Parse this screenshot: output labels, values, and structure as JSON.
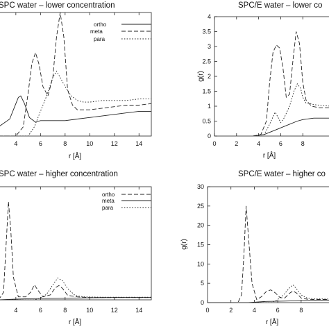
{
  "chart_data": [
    {
      "type": "line",
      "title": "SPC water – lower concentration",
      "xlabel": "r [Å]",
      "ylabel": "",
      "xlim": [
        2.6,
        15
      ],
      "ylim": [
        0,
        4
      ],
      "xticks": [
        "4",
        "6",
        "8",
        "10",
        "12",
        "14"
      ],
      "yticks": [],
      "legend": [
        "ortho",
        "meta",
        "para"
      ],
      "series": [
        {
          "name": "ortho",
          "dash": "solid",
          "x": [
            2.6,
            3.5,
            3.9,
            4.2,
            4.4,
            4.7,
            5.1,
            5.6,
            6.0,
            7.0,
            8.0,
            9.0,
            10,
            11,
            12,
            13,
            14,
            15
          ],
          "values": [
            0.3,
            0.55,
            0.95,
            1.25,
            1.3,
            1.05,
            0.6,
            0.45,
            0.5,
            0.5,
            0.5,
            0.55,
            0.6,
            0.65,
            0.7,
            0.75,
            0.8,
            0.8
          ]
        },
        {
          "name": "meta",
          "dash": "dashed",
          "x": [
            2.6,
            4.0,
            4.6,
            5.0,
            5.3,
            5.6,
            5.9,
            6.2,
            6.6,
            7.0,
            7.3,
            7.6,
            7.9,
            8.2,
            8.6,
            9.0,
            10,
            11,
            12,
            13,
            14,
            15
          ],
          "values": [
            0,
            0,
            0.3,
            1.4,
            2.35,
            2.7,
            2.3,
            1.6,
            1.3,
            1.9,
            3.2,
            4.0,
            3.2,
            1.5,
            1.0,
            0.85,
            0.85,
            0.9,
            0.95,
            1.0,
            1.0,
            1.05
          ]
        },
        {
          "name": "para",
          "dash": "dotted",
          "x": [
            2.6,
            5.0,
            5.5,
            6.0,
            6.5,
            7.0,
            7.3,
            7.6,
            8.0,
            8.5,
            9.0,
            9.5,
            10,
            11,
            12,
            13,
            14,
            15
          ],
          "values": [
            0,
            0,
            0.3,
            0.8,
            1.3,
            1.9,
            2.1,
            1.9,
            1.6,
            1.3,
            1.15,
            1.1,
            1.1,
            1.15,
            1.15,
            1.15,
            1.2,
            1.2
          ]
        }
      ]
    },
    {
      "type": "line",
      "title": "SPC/E water – lower co",
      "xlabel": "r [Å]",
      "ylabel": "g(r)",
      "xlim": [
        0,
        10.5
      ],
      "ylim": [
        0,
        4
      ],
      "xticks": [
        "0",
        "2",
        "4",
        "6",
        "8"
      ],
      "yticks": [
        "0",
        "0.5",
        "1",
        "1.5",
        "2",
        "2.5",
        "3",
        "3.5",
        "4"
      ],
      "series": [
        {
          "name": "ortho",
          "dash": "solid",
          "x": [
            3.5,
            4.5,
            5.5,
            6.5,
            7.5,
            8.0,
            9.0,
            10.5
          ],
          "values": [
            0,
            0.05,
            0.2,
            0.35,
            0.5,
            0.55,
            0.6,
            0.6
          ]
        },
        {
          "name": "meta",
          "dash": "dashed",
          "x": [
            3.5,
            4.2,
            4.7,
            5.0,
            5.3,
            5.6,
            5.9,
            6.2,
            6.5,
            6.8,
            7.1,
            7.4,
            7.7,
            8.0,
            8.3,
            8.8,
            9.5,
            10.5
          ],
          "values": [
            0,
            0.05,
            0.5,
            1.8,
            2.8,
            3.05,
            2.95,
            2.3,
            1.3,
            1.4,
            2.5,
            3.5,
            3.1,
            1.8,
            1.2,
            1.0,
            0.95,
            0.95
          ]
        },
        {
          "name": "para",
          "dash": "dotted",
          "x": [
            3.5,
            4.5,
            5.0,
            5.5,
            5.8,
            6.0,
            6.3,
            6.8,
            7.2,
            7.5,
            7.8,
            8.0,
            8.3,
            8.6,
            9.0,
            10.5
          ],
          "values": [
            0,
            0.05,
            0.4,
            0.8,
            0.6,
            0.45,
            0.6,
            1.0,
            1.5,
            1.75,
            1.6,
            1.3,
            1.1,
            1.1,
            1.05,
            1.0
          ]
        }
      ]
    },
    {
      "type": "line",
      "title": "SPC water – higher concentration",
      "xlabel": "r [Å]",
      "ylabel": "",
      "xlim": [
        2.6,
        15
      ],
      "ylim": [
        0,
        30
      ],
      "xticks": [
        "4",
        "6",
        "8",
        "10",
        "12",
        "14"
      ],
      "yticks": [],
      "legend": [
        "ortho",
        "meta",
        "para"
      ],
      "series": [
        {
          "name": "ortho",
          "dash": "dashed",
          "x": [
            2.6,
            3.0,
            3.2,
            3.4,
            3.6,
            3.8,
            4.2,
            4.8,
            5.2,
            5.5,
            5.8,
            6.2,
            6.8,
            7.2,
            7.5,
            7.8,
            8.2,
            9,
            10,
            12,
            15
          ],
          "values": [
            0,
            2,
            14,
            26,
            18,
            6,
            0.8,
            0.8,
            2,
            4,
            2.5,
            0.8,
            1.3,
            3.2,
            3.8,
            3.0,
            1.2,
            0.8,
            0.6,
            0.6,
            0.6
          ]
        },
        {
          "name": "meta",
          "dash": "solid",
          "x": [
            2.6,
            4.0,
            5.0,
            6.0,
            7.0,
            8.0,
            9.0,
            10,
            12,
            15
          ],
          "values": [
            0,
            0.2,
            0.3,
            0.35,
            0.4,
            0.45,
            0.5,
            0.55,
            0.6,
            0.6
          ]
        },
        {
          "name": "para",
          "dash": "dotted",
          "x": [
            2.6,
            5.5,
            6.0,
            6.5,
            7.0,
            7.4,
            7.8,
            8.2,
            8.8,
            9.5,
            11,
            13,
            15
          ],
          "values": [
            0,
            0,
            0.5,
            1.5,
            4.0,
            5.8,
            5.0,
            3.0,
            1.2,
            0.8,
            0.7,
            0.7,
            0.7
          ]
        }
      ]
    },
    {
      "type": "line",
      "title": "SPC/E water – higher co",
      "xlabel": "r [Å]",
      "ylabel": "g(r)",
      "xlim": [
        0,
        10.5
      ],
      "ylim": [
        0,
        30
      ],
      "xticks": [
        "0",
        "2",
        "4",
        "6",
        "8"
      ],
      "yticks": [
        "0",
        "5",
        "10",
        "15",
        "20",
        "25",
        "30"
      ],
      "series": [
        {
          "name": "ortho",
          "dash": "dashed",
          "x": [
            0,
            2.6,
            2.9,
            3.1,
            3.3,
            3.5,
            3.8,
            4.2,
            4.6,
            5.0,
            5.4,
            5.8,
            6.2,
            6.6,
            7.0,
            7.3,
            7.6,
            8.0,
            8.5,
            9.0,
            10.5
          ],
          "values": [
            0,
            0,
            2,
            12,
            25,
            17,
            5,
            0.8,
            1.5,
            2.8,
            3.3,
            2.5,
            1.3,
            1.2,
            2.4,
            3.0,
            2.5,
            1.2,
            0.9,
            0.8,
            0.8
          ]
        },
        {
          "name": "meta",
          "dash": "solid",
          "x": [
            0,
            3.5,
            5.0,
            6.5,
            8.0,
            9.0,
            10.5
          ],
          "values": [
            0,
            0,
            0.3,
            0.4,
            0.5,
            0.6,
            0.6
          ]
        },
        {
          "name": "para",
          "dash": "dotted",
          "x": [
            0,
            5.5,
            6.0,
            6.5,
            7.0,
            7.3,
            7.6,
            8.0,
            8.5,
            9.0,
            10.5
          ],
          "values": [
            0,
            0,
            0.8,
            2.0,
            3.8,
            4.6,
            3.6,
            2.0,
            1.2,
            1.0,
            0.9
          ]
        }
      ]
    }
  ]
}
